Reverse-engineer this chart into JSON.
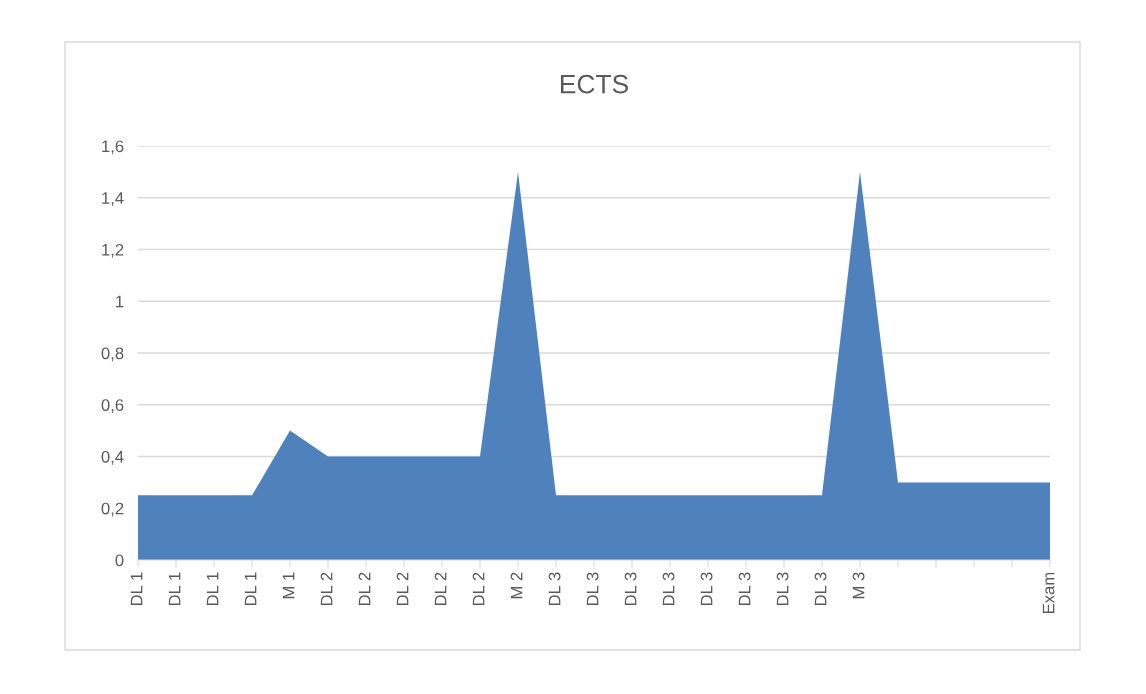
{
  "chart_data": {
    "type": "area",
    "title": "ECTS",
    "categories": [
      "DL 1",
      "DL 1",
      "DL 1",
      "DL 1",
      "M 1",
      "DL 2",
      "DL 2",
      "DL 2",
      "DL 2",
      "DL 2",
      "M 2",
      "DL 3",
      "DL 3",
      "DL 3",
      "DL 3",
      "DL 3",
      "DL 3",
      "DL 3",
      "DL 3",
      "M 3",
      null,
      null,
      null,
      null,
      "Exam"
    ],
    "series": [
      {
        "color": "#4f81bd",
        "values": [
          0.25,
          0.25,
          0.25,
          0.25,
          0.5,
          0.4,
          0.4,
          0.4,
          0.4,
          0.4,
          1.5,
          0.25,
          0.25,
          0.25,
          0.25,
          0.25,
          0.25,
          0.25,
          0.25,
          1.5,
          0.3,
          0.3,
          0.3,
          0.3,
          0.3
        ]
      }
    ],
    "ylim": [
      0,
      1.6
    ],
    "yticks": [
      0,
      {
        "value": 0.2,
        "label": "0,2"
      },
      {
        "value": 0.4,
        "label": "0,4"
      },
      {
        "value": 0.6,
        "label": "0,6"
      },
      {
        "value": 0.8,
        "label": "0,8"
      },
      1,
      {
        "value": 1.2,
        "label": "1,2"
      },
      {
        "value": 1.4,
        "label": "1,4"
      },
      {
        "value": 1.6,
        "label": "1,6"
      }
    ],
    "grid": "y"
  }
}
